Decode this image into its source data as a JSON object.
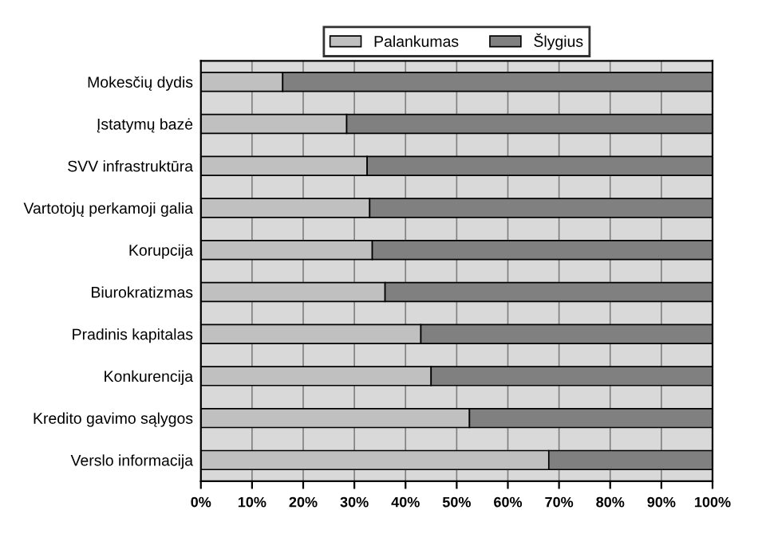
{
  "chart_data": {
    "type": "bar",
    "orientation": "horizontal",
    "stacked": true,
    "categories": [
      "Mokesčių dydis",
      "Įstatymų bazė",
      "SVV infrastruktūra",
      "Vartotojų perkamoji galia",
      "Korupcija",
      "Biurokratizmas",
      "Pradinis kapitalas",
      "Konkurencija",
      "Kredito gavimo sąlygos",
      "Verslo informacija"
    ],
    "series": [
      {
        "name": "Palankumas",
        "color": "#c0c0c0",
        "values": [
          16,
          28.5,
          32.5,
          33,
          33.5,
          36,
          43,
          45,
          52.5,
          68
        ]
      },
      {
        "name": "Šlygius",
        "color": "#808080",
        "values": [
          84,
          71.5,
          67.5,
          67,
          66.5,
          64,
          57,
          55,
          47.5,
          32
        ]
      }
    ],
    "xlim": [
      0,
      100
    ],
    "xticks": [
      {
        "value": 0,
        "label": "0%"
      },
      {
        "value": 10,
        "label": "10%"
      },
      {
        "value": 20,
        "label": "20%"
      },
      {
        "value": 30,
        "label": "30%"
      },
      {
        "value": 40,
        "label": "40%"
      },
      {
        "value": 50,
        "label": "50%"
      },
      {
        "value": 60,
        "label": "60%"
      },
      {
        "value": 70,
        "label": "70%"
      },
      {
        "value": 80,
        "label": "80%"
      },
      {
        "value": 90,
        "label": "90%"
      },
      {
        "value": 100,
        "label": "100%"
      }
    ],
    "grid": "x",
    "legend": "top"
  }
}
